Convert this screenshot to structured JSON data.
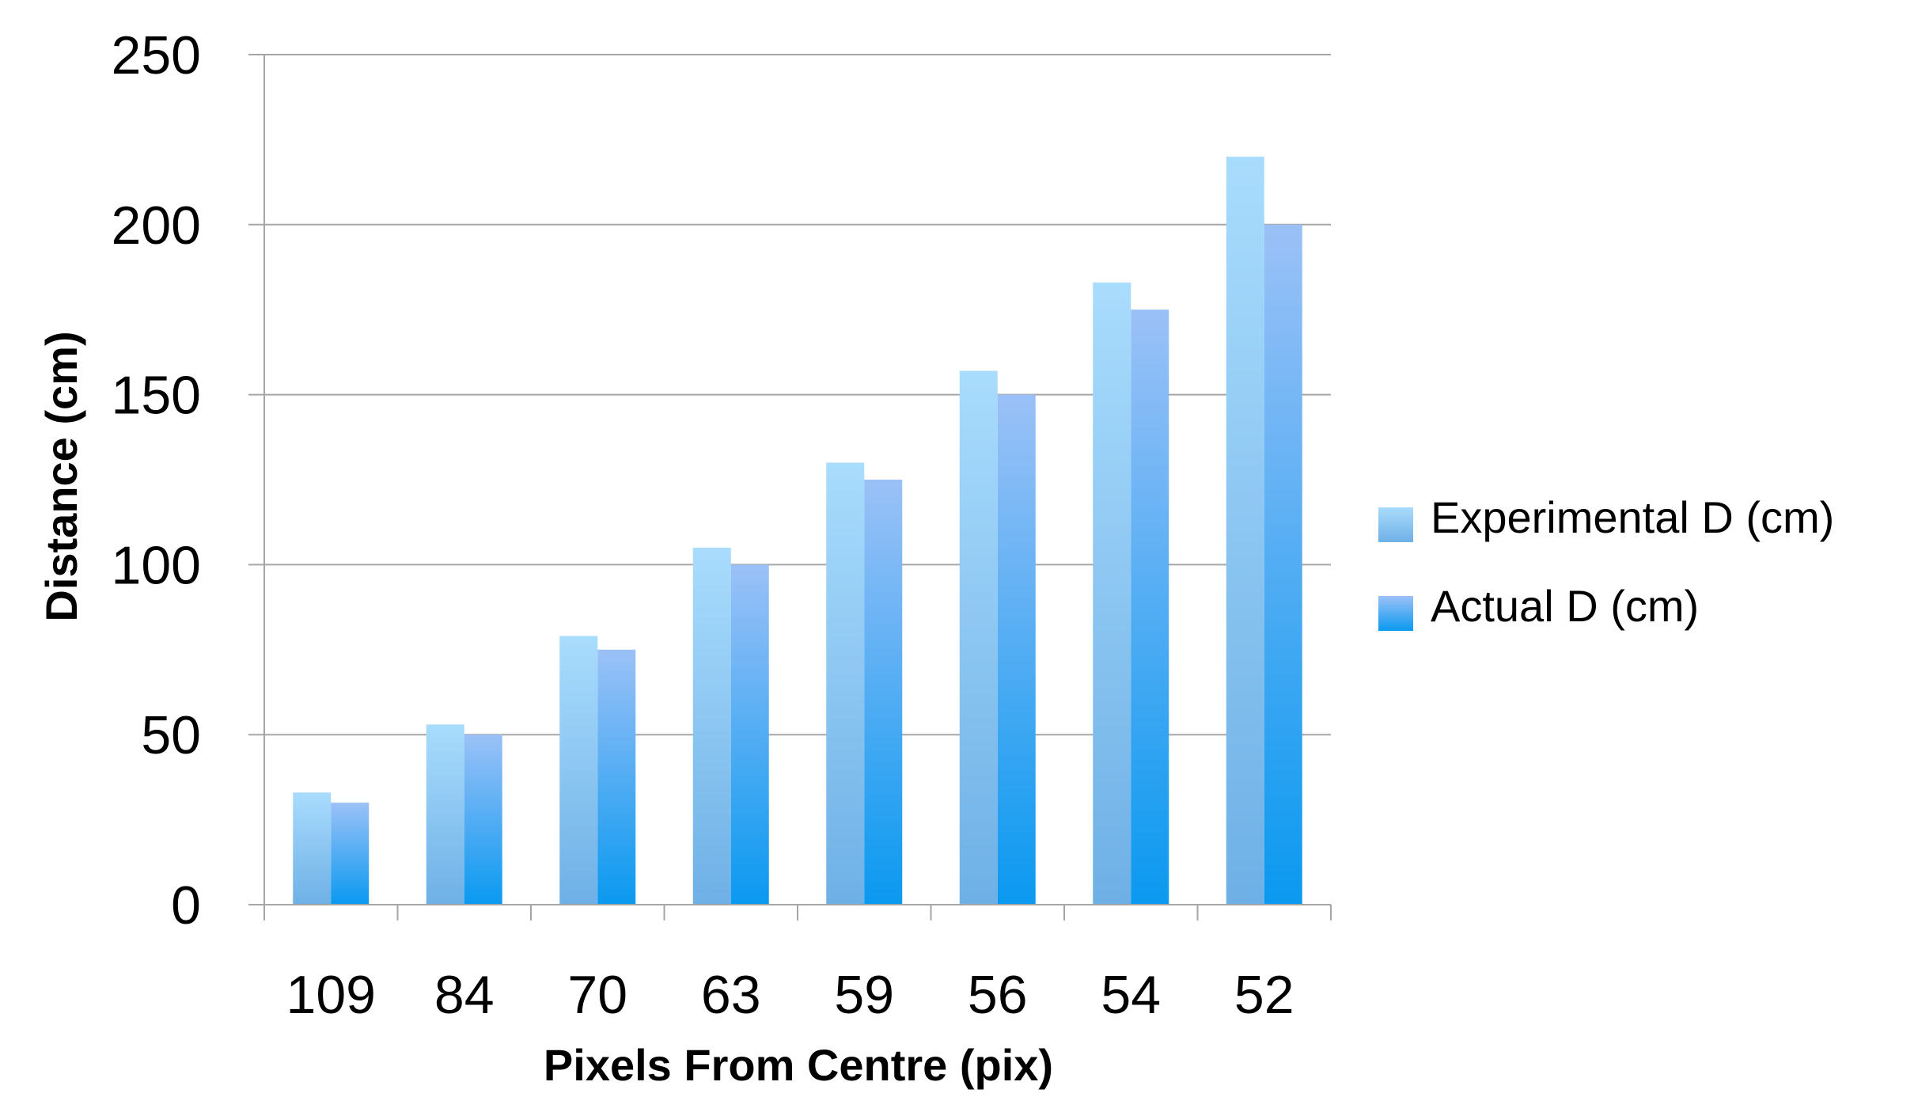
{
  "chart_data": {
    "type": "bar",
    "title": "",
    "xlabel": "Pixels From Centre (pix)",
    "ylabel": "Distance (cm)",
    "categories": [
      "109",
      "84",
      "70",
      "63",
      "59",
      "56",
      "54",
      "52"
    ],
    "series": [
      {
        "name": "Experimental D (cm)",
        "values": [
          33,
          53,
          79,
          105,
          130,
          157,
          183,
          220
        ],
        "color_top": "#a9dcfd",
        "color_bottom": "#6eb0e6"
      },
      {
        "name": "Actual D (cm)",
        "values": [
          30,
          50,
          75,
          100,
          125,
          150,
          175,
          200
        ],
        "color_top": "#9bc1f7",
        "color_bottom": "#0a99f0"
      }
    ],
    "ylim": [
      0,
      250
    ],
    "yticks": [
      0,
      50,
      100,
      150,
      200,
      250
    ],
    "grid": true,
    "legend_position": "right"
  }
}
